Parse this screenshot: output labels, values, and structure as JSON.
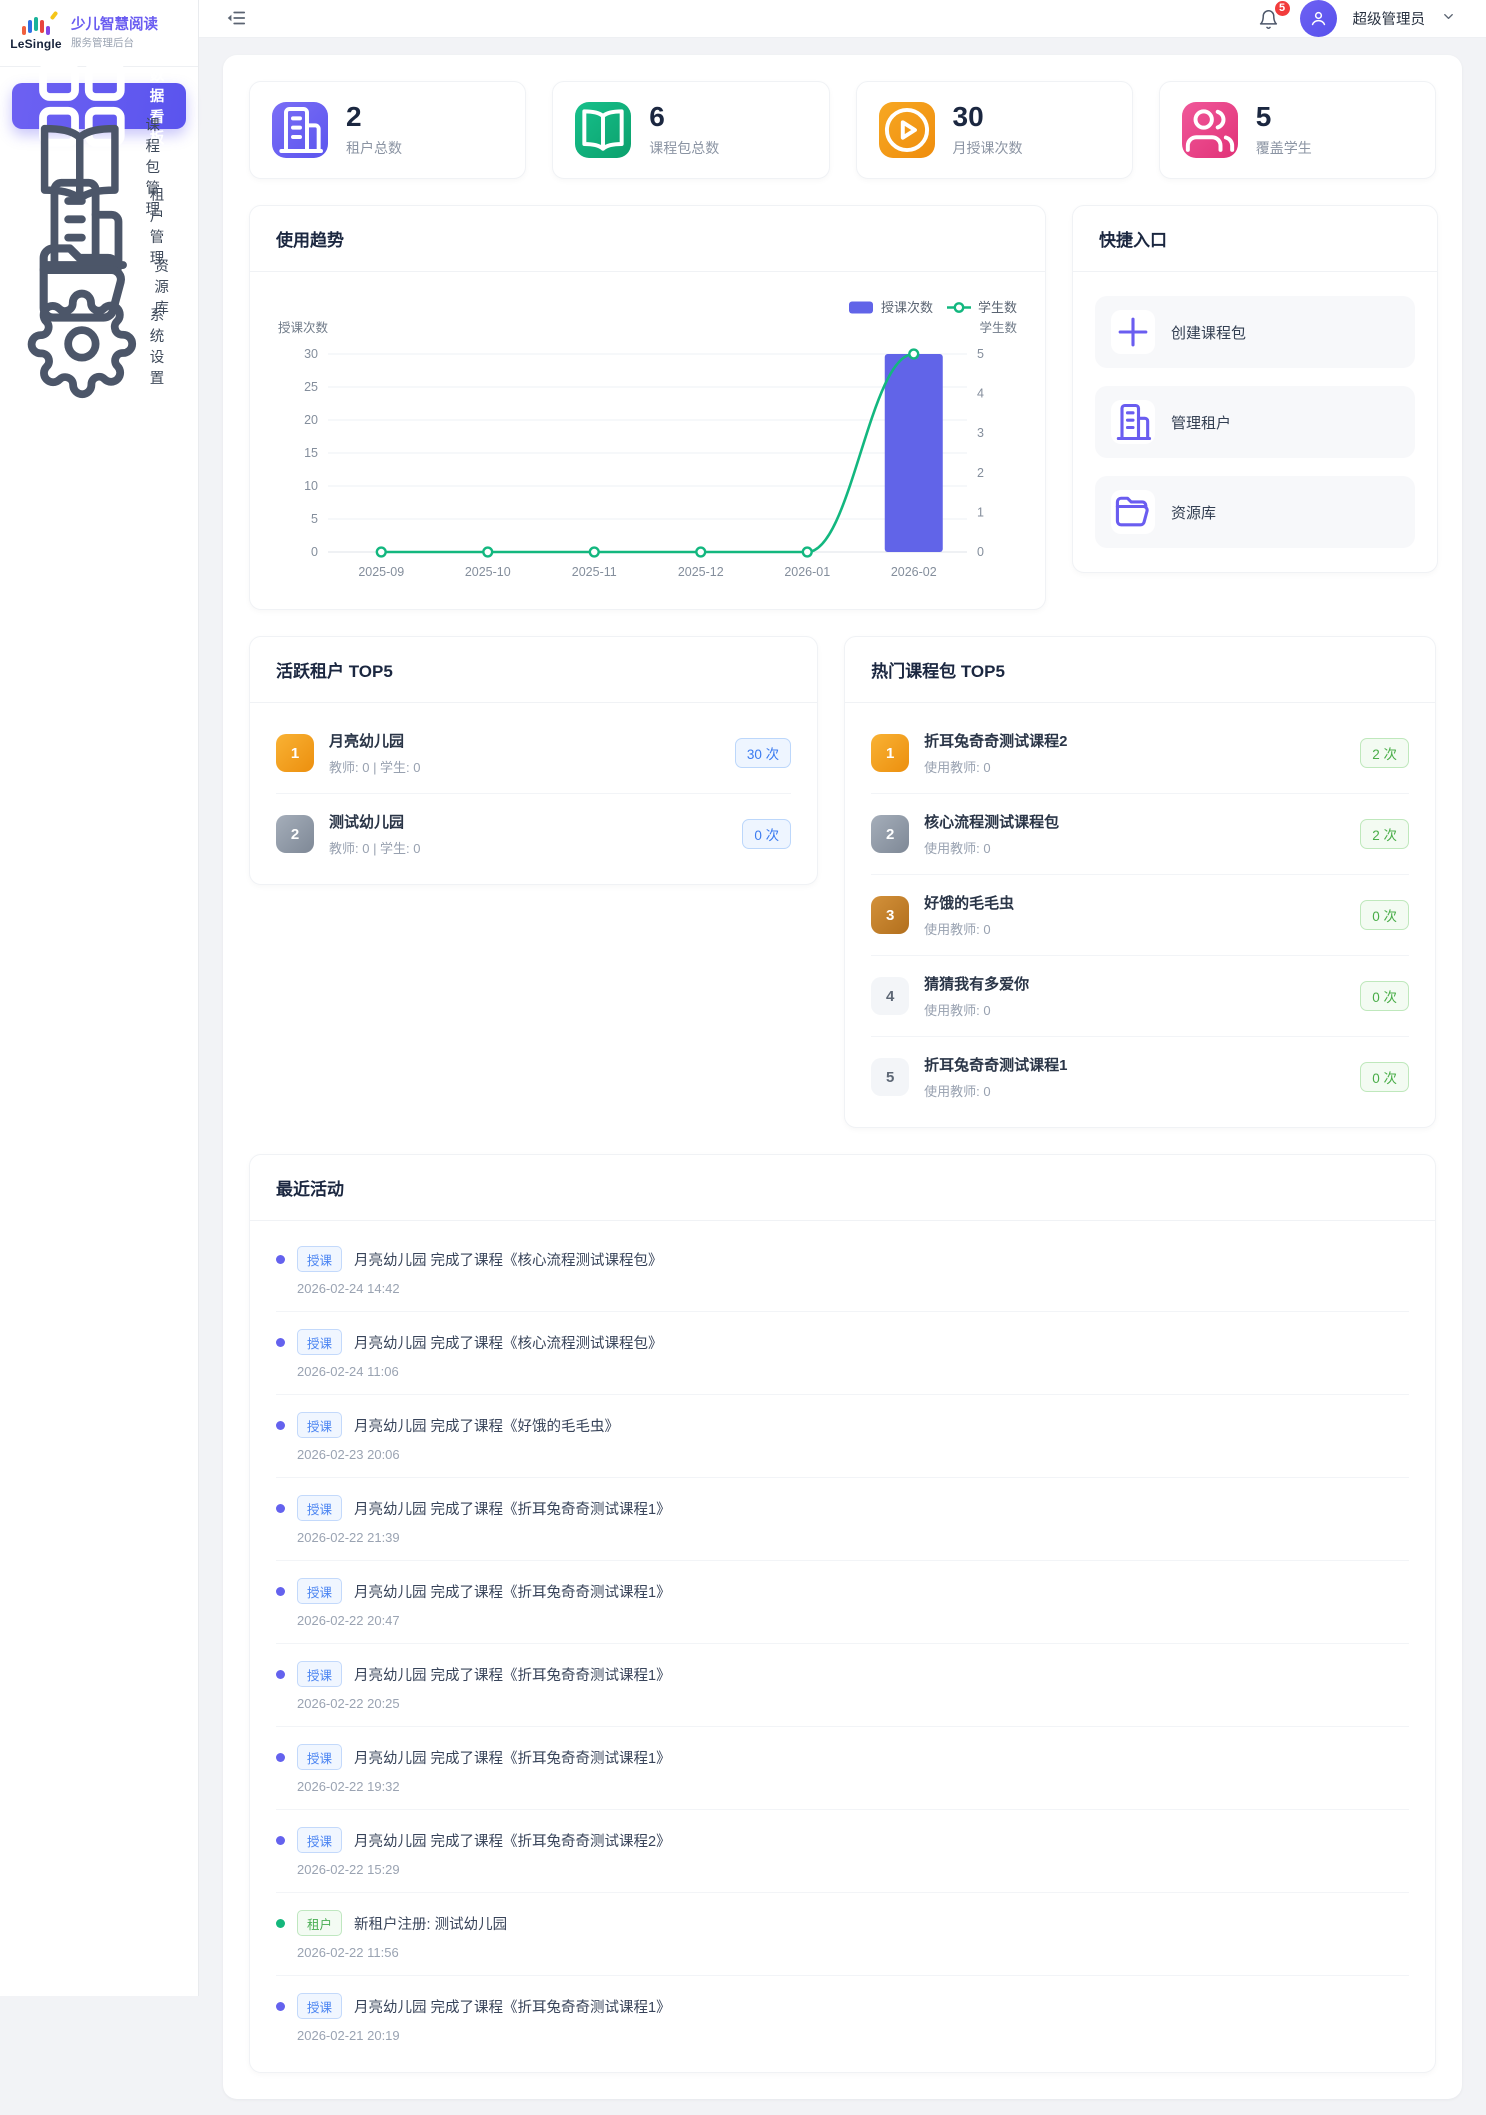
{
  "brand": {
    "logo_text": "LeSingle",
    "title": "少儿智慧阅读",
    "subtitle": "服务管理后台"
  },
  "header": {
    "notification_count": "5",
    "user_name": "超级管理员"
  },
  "sidebar": {
    "items": [
      {
        "key": "dashboard",
        "icon": "dashboard",
        "label": "数据看板",
        "active": true
      },
      {
        "key": "course-packages",
        "icon": "book",
        "label": "课程包管理",
        "active": false
      },
      {
        "key": "tenants",
        "icon": "building",
        "label": "租户管理",
        "active": false
      },
      {
        "key": "resources",
        "icon": "folder",
        "label": "资源库",
        "active": false
      },
      {
        "key": "settings",
        "icon": "gear",
        "label": "系统设置",
        "active": false
      }
    ]
  },
  "stats": [
    {
      "icon": "building",
      "style": "purple",
      "value": "2",
      "label": "租户总数"
    },
    {
      "icon": "book",
      "style": "green",
      "value": "6",
      "label": "课程包总数"
    },
    {
      "icon": "play",
      "style": "orange",
      "value": "30",
      "label": "月授课次数"
    },
    {
      "icon": "users",
      "style": "pink",
      "value": "5",
      "label": "覆盖学生"
    }
  ],
  "trend": {
    "title": "使用趋势"
  },
  "chart_data": {
    "type": "bar",
    "title": "使用趋势",
    "categories": [
      "2025-09",
      "2025-10",
      "2025-11",
      "2025-12",
      "2026-01",
      "2026-02"
    ],
    "series": [
      {
        "name": "授课次数",
        "type": "bar",
        "axis": "left",
        "color": "#6164e8",
        "values": [
          0,
          0,
          0,
          0,
          0,
          30
        ]
      },
      {
        "name": "学生数",
        "type": "line",
        "axis": "right",
        "color": "#13b77f",
        "values": [
          0,
          0,
          0,
          0,
          0,
          5
        ]
      }
    ],
    "left_axis": {
      "title": "授课次数",
      "min": 0,
      "max": 30,
      "step": 5
    },
    "right_axis": {
      "title": "学生数",
      "min": 0,
      "max": 5,
      "step": 1
    },
    "legend": [
      "授课次数",
      "学生数"
    ],
    "legend_position": "top-right",
    "grid": true
  },
  "quick": {
    "title": "快捷入口",
    "items": [
      {
        "icon": "plus",
        "label": "创建课程包"
      },
      {
        "icon": "building",
        "label": "管理租户"
      },
      {
        "icon": "folder",
        "label": "资源库"
      }
    ]
  },
  "tenants": {
    "title": "活跃租户 TOP5",
    "badge_style": "blue",
    "items": [
      {
        "name": "月亮幼儿园",
        "meta": "教师: 0 | 学生: 0",
        "badge": "30 次"
      },
      {
        "name": "测试幼儿园",
        "meta": "教师: 0 | 学生: 0",
        "badge": "0 次"
      }
    ]
  },
  "courses": {
    "title": "热门课程包 TOP5",
    "badge_style": "green",
    "items": [
      {
        "name": "折耳兔奇奇测试课程2",
        "meta": "使用教师: 0",
        "badge": "2 次"
      },
      {
        "name": "核心流程测试课程包",
        "meta": "使用教师: 0",
        "badge": "2 次"
      },
      {
        "name": "好饿的毛毛虫",
        "meta": "使用教师: 0",
        "badge": "0 次"
      },
      {
        "name": "猜猜我有多爱你",
        "meta": "使用教师: 0",
        "badge": "0 次"
      },
      {
        "name": "折耳兔奇奇测试课程1",
        "meta": "使用教师: 0",
        "badge": "0 次"
      }
    ]
  },
  "recent": {
    "title": "最近活动",
    "items": [
      {
        "tag": "授课",
        "style": "blue",
        "text": "月亮幼儿园 完成了课程《核心流程测试课程包》",
        "time": "2026-02-24 14:42"
      },
      {
        "tag": "授课",
        "style": "blue",
        "text": "月亮幼儿园 完成了课程《核心流程测试课程包》",
        "time": "2026-02-24 11:06"
      },
      {
        "tag": "授课",
        "style": "blue",
        "text": "月亮幼儿园 完成了课程《好饿的毛毛虫》",
        "time": "2026-02-23 20:06"
      },
      {
        "tag": "授课",
        "style": "blue",
        "text": "月亮幼儿园 完成了课程《折耳兔奇奇测试课程1》",
        "time": "2026-02-22 21:39"
      },
      {
        "tag": "授课",
        "style": "blue",
        "text": "月亮幼儿园 完成了课程《折耳兔奇奇测试课程1》",
        "time": "2026-02-22 20:47"
      },
      {
        "tag": "授课",
        "style": "blue",
        "text": "月亮幼儿园 完成了课程《折耳兔奇奇测试课程1》",
        "time": "2026-02-22 20:25"
      },
      {
        "tag": "授课",
        "style": "blue",
        "text": "月亮幼儿园 完成了课程《折耳兔奇奇测试课程1》",
        "time": "2026-02-22 19:32"
      },
      {
        "tag": "授课",
        "style": "blue",
        "text": "月亮幼儿园 完成了课程《折耳兔奇奇测试课程2》",
        "time": "2026-02-22 15:29"
      },
      {
        "tag": "租户",
        "style": "green",
        "text": "新租户注册: 测试幼儿园",
        "time": "2026-02-22 11:56"
      },
      {
        "tag": "授课",
        "style": "blue",
        "text": "月亮幼儿园 完成了课程《折耳兔奇奇测试课程1》",
        "time": "2026-02-21 20:19"
      }
    ]
  },
  "colors": {
    "primary": "#5f5bee",
    "line_green": "#13b77f",
    "badge_blue": "#3b7bf0",
    "badge_green": "#49ad48",
    "notification_red": "#f23c3c"
  }
}
